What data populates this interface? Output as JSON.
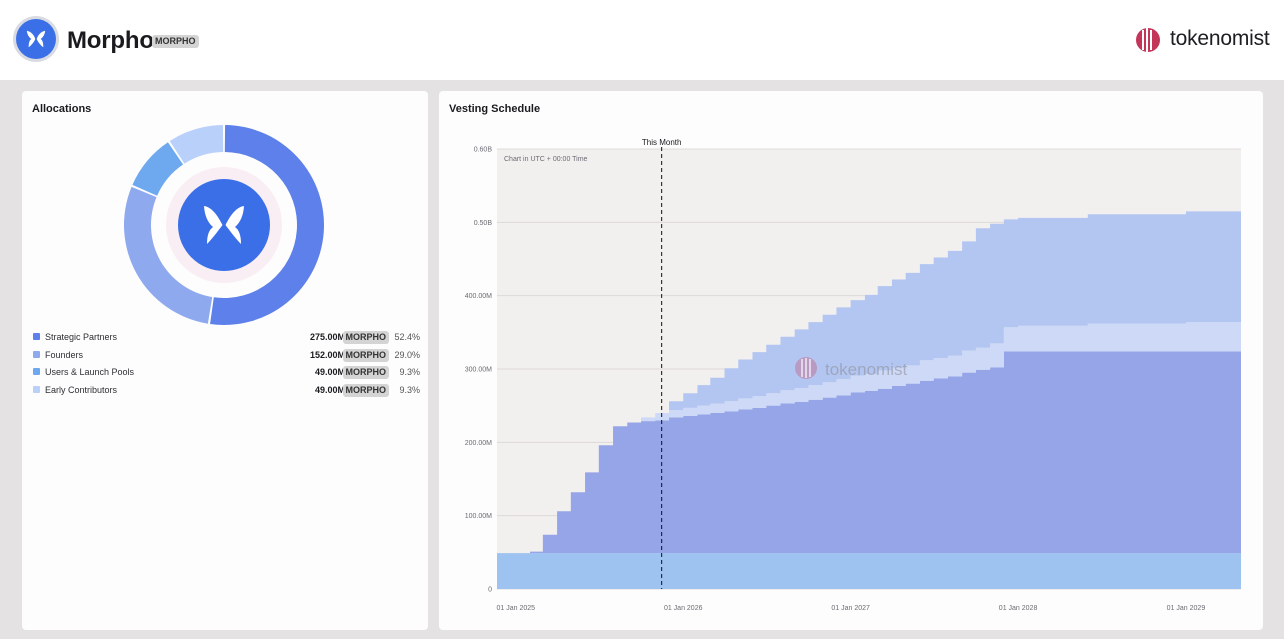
{
  "header": {
    "title": "Morpho",
    "ticker": "MORPHO",
    "brand": "tokenomist"
  },
  "allocations": {
    "title": "Allocations",
    "items": [
      {
        "label": "Strategic Partners",
        "amount": "275.00M",
        "ticker": "MORPHO",
        "percent": "52.4%",
        "value": 52.4,
        "color": "#5d80ea"
      },
      {
        "label": "Founders",
        "amount": "152.00M",
        "ticker": "MORPHO",
        "percent": "29.0%",
        "value": 29.0,
        "color": "#8ea9ee"
      },
      {
        "label": "Users & Launch Pools",
        "amount": "49.00M",
        "ticker": "MORPHO",
        "percent": "9.3%",
        "value": 9.3,
        "color": "#6ea9f0"
      },
      {
        "label": "Early Contributors",
        "amount": "49.00M",
        "ticker": "MORPHO",
        "percent": "9.3%",
        "value": 9.3,
        "color": "#b9d0fb"
      }
    ]
  },
  "vesting": {
    "title": "Vesting Schedule",
    "marker_label": "This Month",
    "note": "Chart in UTC + 00:00 Time",
    "watermark": "tokenomist"
  },
  "chart_data": {
    "type": "area",
    "stacked": true,
    "step": true,
    "ylim": [
      0,
      600
    ],
    "y_unit": "M",
    "y_ticks": [
      {
        "value": 0,
        "label": "0"
      },
      {
        "value": 100,
        "label": "100.00M"
      },
      {
        "value": 200,
        "label": "200.00M"
      },
      {
        "value": 300,
        "label": "300.00M"
      },
      {
        "value": 400,
        "label": "400.00M"
      },
      {
        "value": 500,
        "label": "0.50B"
      },
      {
        "value": 600,
        "label": "0.60B"
      }
    ],
    "x_ticks": [
      "01 Jan 2025",
      "01 Jan 2026",
      "01 Jan 2027",
      "01 Jan 2028",
      "01 Jan 2029"
    ],
    "x_range": [
      "2024-11-21",
      "2029-05-01"
    ],
    "marker_date": "2025-11-15",
    "grid": true,
    "legend": "none",
    "series": [
      {
        "color": "#9ec3f1",
        "points": [
          [
            "2024-11-21",
            49
          ],
          [
            "2029-05-01",
            49
          ]
        ]
      },
      {
        "color": "#95a5e8",
        "points": [
          [
            "2024-11-21",
            0
          ],
          [
            "2025-02-01",
            2
          ],
          [
            "2025-03-01",
            25
          ],
          [
            "2025-04-01",
            57
          ],
          [
            "2025-05-01",
            83
          ],
          [
            "2025-06-01",
            110
          ],
          [
            "2025-07-01",
            147
          ],
          [
            "2025-08-01",
            173
          ],
          [
            "2025-09-01",
            178
          ],
          [
            "2025-10-01",
            180
          ],
          [
            "2025-11-01",
            181
          ],
          [
            "2025-12-01",
            185
          ],
          [
            "2026-01-01",
            187
          ],
          [
            "2026-02-01",
            189
          ],
          [
            "2026-03-01",
            191
          ],
          [
            "2026-04-01",
            193
          ],
          [
            "2026-05-01",
            196
          ],
          [
            "2026-06-01",
            198
          ],
          [
            "2026-07-01",
            201
          ],
          [
            "2026-08-01",
            204
          ],
          [
            "2026-09-01",
            206
          ],
          [
            "2026-10-01",
            209
          ],
          [
            "2026-11-01",
            212
          ],
          [
            "2026-12-01",
            215
          ],
          [
            "2027-01-01",
            219
          ],
          [
            "2027-02-01",
            221
          ],
          [
            "2027-03-01",
            224
          ],
          [
            "2027-04-01",
            228
          ],
          [
            "2027-05-01",
            231
          ],
          [
            "2027-06-01",
            235
          ],
          [
            "2027-07-01",
            238
          ],
          [
            "2027-08-01",
            241
          ],
          [
            "2027-09-01",
            246
          ],
          [
            "2027-10-01",
            250
          ],
          [
            "2027-11-01",
            253
          ],
          [
            "2027-12-01",
            275
          ],
          [
            "2029-05-01",
            275
          ]
        ]
      },
      {
        "color": "#cdd9f7",
        "points": [
          [
            "2024-11-21",
            0
          ],
          [
            "2025-09-01",
            0
          ],
          [
            "2025-10-01",
            5
          ],
          [
            "2025-11-01",
            10
          ],
          [
            "2025-12-01",
            10
          ],
          [
            "2026-01-01",
            11
          ],
          [
            "2026-02-01",
            12
          ],
          [
            "2026-03-01",
            13
          ],
          [
            "2026-04-01",
            14
          ],
          [
            "2026-05-01",
            15
          ],
          [
            "2026-06-01",
            16
          ],
          [
            "2026-07-01",
            17
          ],
          [
            "2026-08-01",
            18
          ],
          [
            "2026-09-01",
            19
          ],
          [
            "2026-10-01",
            20
          ],
          [
            "2026-11-01",
            21
          ],
          [
            "2026-12-01",
            22
          ],
          [
            "2027-01-01",
            23
          ],
          [
            "2027-03-01",
            25
          ],
          [
            "2027-06-01",
            28
          ],
          [
            "2027-09-01",
            30
          ],
          [
            "2027-11-01",
            33
          ],
          [
            "2028-01-01",
            35
          ],
          [
            "2028-06-01",
            38
          ],
          [
            "2029-01-01",
            40
          ],
          [
            "2029-05-01",
            49
          ]
        ]
      },
      {
        "color": "#b3c6f1",
        "points": [
          [
            "2024-11-21",
            0
          ],
          [
            "2025-11-01",
            0
          ],
          [
            "2025-12-01",
            12
          ],
          [
            "2026-01-01",
            20
          ],
          [
            "2026-02-01",
            28
          ],
          [
            "2026-03-01",
            35
          ],
          [
            "2026-04-01",
            45
          ],
          [
            "2026-05-01",
            53
          ],
          [
            "2026-06-01",
            60
          ],
          [
            "2026-07-01",
            66
          ],
          [
            "2026-08-01",
            73
          ],
          [
            "2026-09-01",
            80
          ],
          [
            "2026-10-01",
            86
          ],
          [
            "2026-11-01",
            92
          ],
          [
            "2026-12-01",
            98
          ],
          [
            "2027-01-01",
            103
          ],
          [
            "2027-02-01",
            108
          ],
          [
            "2027-03-01",
            115
          ],
          [
            "2027-04-01",
            120
          ],
          [
            "2027-05-01",
            126
          ],
          [
            "2027-06-01",
            131
          ],
          [
            "2027-07-01",
            137
          ],
          [
            "2027-08-01",
            143
          ],
          [
            "2027-09-01",
            149
          ],
          [
            "2027-10-01",
            163
          ],
          [
            "2027-12-01",
            147
          ],
          [
            "2028-06-01",
            149
          ],
          [
            "2029-01-01",
            151
          ],
          [
            "2029-05-01",
            152
          ]
        ]
      }
    ]
  }
}
